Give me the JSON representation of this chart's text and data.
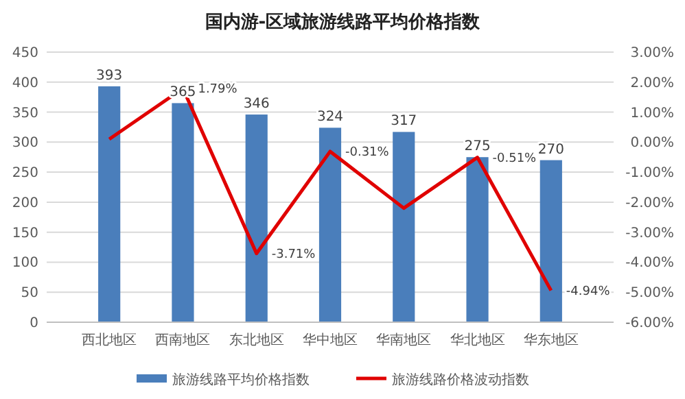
{
  "chart_data": {
    "type": "bar",
    "title": "国内游-区域旅游线路平均价格指数",
    "categories": [
      "西北地区",
      "西南地区",
      "东北地区",
      "华中地区",
      "华南地区",
      "华北地区",
      "华东地区"
    ],
    "series": [
      {
        "name": "旅游线路平均价格指数",
        "color": "#4a7ebb",
        "values": [
          393,
          365,
          346,
          324,
          317,
          275,
          270
        ],
        "value_labels": [
          "393",
          "365",
          "346",
          "324",
          "317",
          "275",
          "270"
        ]
      },
      {
        "name": "旅游线路价格波动指数",
        "type": "line",
        "axis": "y2",
        "color": "#e00000",
        "values": [
          0.1,
          1.79,
          -3.71,
          -0.31,
          -2.2,
          -0.51,
          -4.94
        ],
        "value_labels": [
          null,
          "1.79%",
          "-3.71%",
          "-0.31%",
          null,
          "-0.51%",
          "-4.94%"
        ]
      }
    ],
    "ylim": [
      0,
      450
    ],
    "yticks": [
      0,
      50,
      100,
      150,
      200,
      250,
      300,
      350,
      400,
      450
    ],
    "y2lim": [
      -6,
      3
    ],
    "y2ticks": [
      {
        "value": -6,
        "label": "-6.00%"
      },
      {
        "value": -5,
        "label": "-5.00%"
      },
      {
        "value": -4,
        "label": "-4.00%"
      },
      {
        "value": -3,
        "label": "-3.00%"
      },
      {
        "value": -2,
        "label": "-2.00%"
      },
      {
        "value": -1,
        "label": "-1.00%"
      },
      {
        "value": 0,
        "label": "0.00%"
      },
      {
        "value": 1,
        "label": "1.00%"
      },
      {
        "value": 2,
        "label": "2.00%"
      },
      {
        "value": 3,
        "label": "3.00%"
      }
    ],
    "grid": "y",
    "legend": "bottom",
    "marker": "none",
    "line_style": "solid"
  }
}
